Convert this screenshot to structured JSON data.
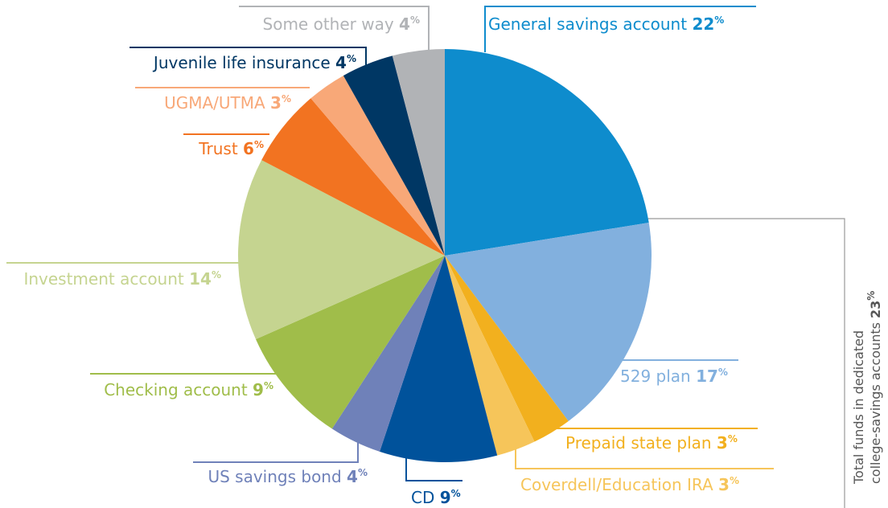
{
  "chart_data": {
    "type": "pie",
    "unit": "%",
    "categories": [
      "General savings account",
      "529 plan",
      "Prepaid state plan",
      "Coverdell/Education IRA",
      "CD",
      "US savings bond",
      "Checking account",
      "Investment account",
      "Trust",
      "UGMA/UTMA",
      "Juvenile life insurance",
      "Some other way"
    ],
    "values": [
      22,
      17,
      3,
      3,
      9,
      4,
      9,
      14,
      6,
      3,
      4,
      4
    ],
    "colors": [
      "#0e8ccd",
      "#82b0de",
      "#f2b01e",
      "#f6c55a",
      "#00529b",
      "#6f81b9",
      "#a0bd4a",
      "#c5d490",
      "#f27321",
      "#f8a878",
      "#003764",
      "#b1b3b6"
    ],
    "annotation": {
      "lines": [
        "Total funds in dedicated",
        "college-savings accounts"
      ],
      "value": 23
    }
  }
}
